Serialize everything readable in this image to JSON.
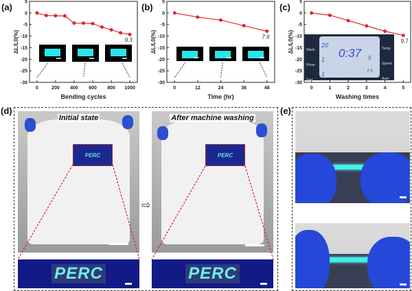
{
  "panels": {
    "a": "(a)",
    "b": "(b)",
    "c": "(c)",
    "d": "(d)",
    "e": "(e)"
  },
  "chart_data": [
    {
      "type": "line",
      "panel": "(a)",
      "xlabel": "Bending cycles",
      "ylabel": "ΔL/L0(%)",
      "x": [
        0,
        100,
        200,
        300,
        400,
        500,
        600,
        700,
        800,
        900,
        1000
      ],
      "values": [
        0,
        -1.1,
        -1.2,
        -1.3,
        -4.4,
        -4.4,
        -4.6,
        -6.1,
        -7.3,
        -8.6,
        -9.3
      ],
      "xticks": [
        0,
        200,
        400,
        600,
        800,
        1000
      ],
      "yticks": [
        5,
        0,
        -5,
        -10,
        -15,
        -20,
        -25,
        -30
      ],
      "xlim": [
        -80,
        1080
      ],
      "ylim": [
        -30,
        5
      ],
      "annotation": "9.3",
      "color": "#e8262b",
      "insets": "three glowing cyan strip photos with arrows to 0, 500, 1000"
    },
    {
      "type": "line",
      "panel": "(b)",
      "xlabel": "Time (hr)",
      "ylabel": "ΔL/L0(%)",
      "x": [
        0,
        12,
        24,
        36,
        48
      ],
      "values": [
        0,
        -1.8,
        -3.1,
        -5.5,
        -7.9
      ],
      "xticks": [
        0,
        12,
        24,
        36,
        48
      ],
      "yticks": [
        5,
        0,
        -5,
        -10,
        -15,
        -20,
        -25,
        -30
      ],
      "xlim": [
        -4,
        52
      ],
      "ylim": [
        -30,
        5
      ],
      "annotation": "7.9",
      "color": "#e8262b"
    },
    {
      "type": "line",
      "panel": "(c)",
      "xlabel": "Washing times",
      "ylabel": "ΔL/L0(%)",
      "x": [
        0,
        1,
        2,
        3,
        4,
        5
      ],
      "values": [
        0,
        -1,
        -3.3,
        -5.6,
        -7.9,
        -9.7
      ],
      "xticks": [
        0,
        1,
        2,
        3,
        4,
        5
      ],
      "yticks": [
        5,
        0,
        -5,
        -10,
        -15,
        -20,
        -25,
        -30
      ],
      "xlim": [
        -0.4,
        5.4
      ],
      "ylim": [
        -30,
        5
      ],
      "annotation": "9.7",
      "color": "#e8262b"
    }
  ],
  "washer_display": {
    "left": [
      "Wash",
      "Rinse",
      "Spin"
    ],
    "right": [
      "Temp.",
      "Speed",
      "Auto"
    ],
    "time": "0:37",
    "wash_val": "20",
    "rinse_val": "1",
    "spin_val": "1",
    "speed_val": "6",
    "code": "t-1"
  },
  "photos": {
    "initial_caption": "Initial state",
    "after_caption": "After machine washing",
    "patch_text": "PERC"
  }
}
